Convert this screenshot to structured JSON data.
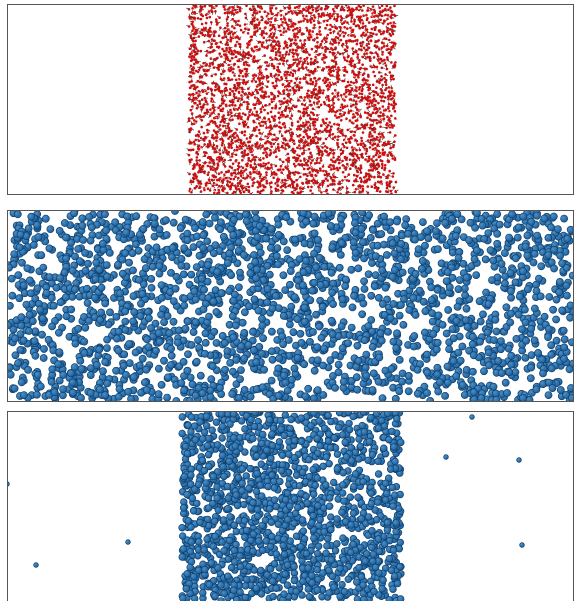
{
  "scene": {
    "panels": [
      {
        "id": "panel-top",
        "content": "water-slab",
        "atom_color_oxygen": "#cc1111",
        "atom_color_hydrogen": "#d8d8d8"
      },
      {
        "id": "panel-mid",
        "content": "vapor-filled-box",
        "particle_color": "#1f5f99",
        "particle_highlight": "#4a90c8"
      },
      {
        "id": "panel-bot",
        "content": "coarse-grained-slab",
        "particle_color": "#1f5f99",
        "particle_highlight": "#4a90c8"
      }
    ]
  }
}
